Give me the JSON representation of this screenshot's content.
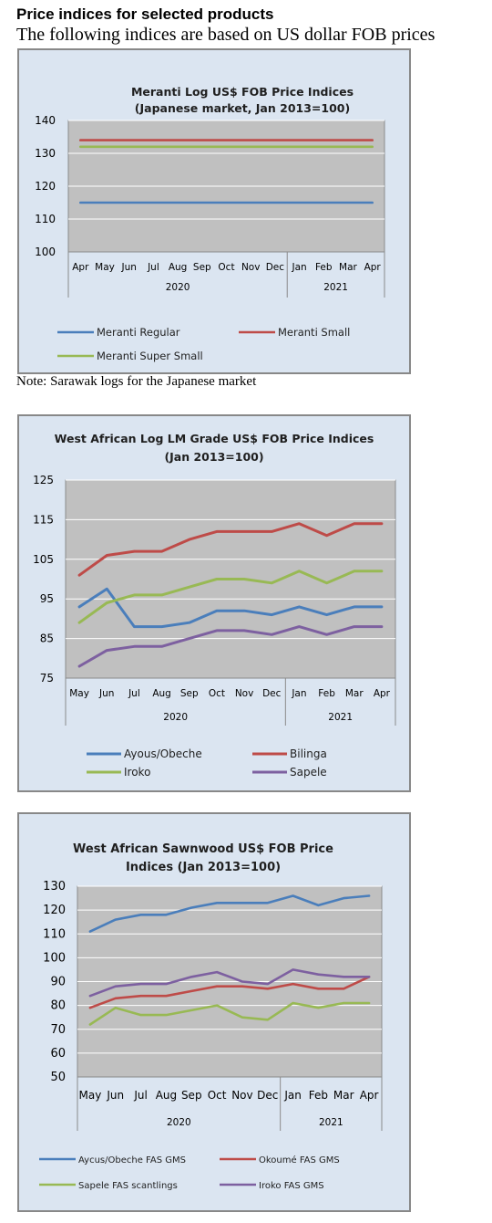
{
  "heading": "Price indices for selected products",
  "subheading": "The following indices are based on US dollar FOB prices",
  "note": "Note: Sarawak logs for the Japanese market",
  "chart_data": [
    {
      "type": "line",
      "title": [
        "Meranti Log US$ FOB Price Indices",
        "(Japanese market, Jan 2013=100)"
      ],
      "categories": [
        "Apr",
        "May",
        "Jun",
        "Jul",
        "Aug",
        "Sep",
        "Oct",
        "Nov",
        "Dec",
        "Jan",
        "Feb",
        "Mar",
        "Apr"
      ],
      "year_groups": [
        {
          "label": "2020",
          "months": 9
        },
        {
          "label": "2021",
          "months": 4
        }
      ],
      "ylim": [
        100,
        140
      ],
      "yticks": [
        100,
        110,
        120,
        130,
        140
      ],
      "grid": true,
      "legend_position": "bottom",
      "series": [
        {
          "name": "Meranti Regular",
          "color": "#4a7ebb",
          "values": [
            115,
            115,
            115,
            115,
            115,
            115,
            115,
            115,
            115,
            115,
            115,
            115,
            115
          ]
        },
        {
          "name": "Meranti Small",
          "color": "#be4b48",
          "values": [
            134,
            134,
            134,
            134,
            134,
            134,
            134,
            134,
            134,
            134,
            134,
            134,
            134
          ]
        },
        {
          "name": "Meranti Super Small",
          "color": "#98b954",
          "values": [
            132,
            132,
            132,
            132,
            132,
            132,
            132,
            132,
            132,
            132,
            132,
            132,
            132
          ]
        }
      ]
    },
    {
      "type": "line",
      "title": [
        "West African Log LM Grade US$ FOB Price Indices",
        "(Jan 2013=100)"
      ],
      "categories": [
        "May",
        "Jun",
        "Jul",
        "Aug",
        "Sep",
        "Oct",
        "Nov",
        "Dec",
        "Jan",
        "Feb",
        "Mar",
        "Apr"
      ],
      "year_groups": [
        {
          "label": "2020",
          "months": 8
        },
        {
          "label": "2021",
          "months": 4
        }
      ],
      "ylim": [
        75,
        125
      ],
      "yticks": [
        75,
        85,
        95,
        105,
        115,
        125
      ],
      "grid": true,
      "legend_position": "bottom",
      "series": [
        {
          "name": "Ayous/Obeche",
          "color": "#4a7ebb",
          "values": [
            93,
            97.5,
            88,
            88,
            89,
            92,
            92,
            91,
            93,
            91,
            93,
            93
          ]
        },
        {
          "name": "Bilinga",
          "color": "#be4b48",
          "values": [
            101,
            106,
            107,
            107,
            110,
            112,
            112,
            112,
            114,
            111,
            114,
            114
          ]
        },
        {
          "name": "Iroko",
          "color": "#98b954",
          "values": [
            89,
            94,
            96,
            96,
            98,
            100,
            100,
            99,
            102,
            99,
            102,
            102
          ]
        },
        {
          "name": "Sapele",
          "color": "#7d60a0",
          "values": [
            78,
            82,
            83,
            83,
            85,
            87,
            87,
            86,
            88,
            86,
            88,
            88
          ]
        }
      ]
    },
    {
      "type": "line",
      "title": [
        "West African Sawnwood US$ FOB Price",
        "Indices (Jan 2013=100)"
      ],
      "categories": [
        "May",
        "Jun",
        "Jul",
        "Aug",
        "Sep",
        "Oct",
        "Nov",
        "Dec",
        "Jan",
        "Feb",
        "Mar",
        "Apr"
      ],
      "year_groups": [
        {
          "label": "2020",
          "months": 8
        },
        {
          "label": "2021",
          "months": 4
        }
      ],
      "ylim": [
        50,
        130
      ],
      "yticks": [
        50,
        60,
        70,
        80,
        90,
        100,
        110,
        120,
        130
      ],
      "grid": true,
      "legend_position": "bottom",
      "series": [
        {
          "name": "Aycus/Obeche FAS GMS",
          "color": "#4a7ebb",
          "values": [
            111,
            116,
            118,
            118,
            121,
            123,
            123,
            123,
            126,
            122,
            125,
            126
          ]
        },
        {
          "name": "Okoumé FAS GMS",
          "color": "#be4b48",
          "values": [
            79,
            83,
            84,
            84,
            86,
            88,
            88,
            87,
            89,
            87,
            87,
            92
          ]
        },
        {
          "name": "Sapele FAS scantlings",
          "color": "#98b954",
          "values": [
            72,
            79,
            76,
            76,
            78,
            80,
            75,
            74,
            81,
            79,
            81,
            81
          ]
        },
        {
          "name": "Iroko FAS GMS",
          "color": "#7d60a0",
          "values": [
            84,
            88,
            89,
            89,
            92,
            94,
            90,
            89,
            95,
            93,
            92,
            92
          ]
        }
      ]
    }
  ]
}
